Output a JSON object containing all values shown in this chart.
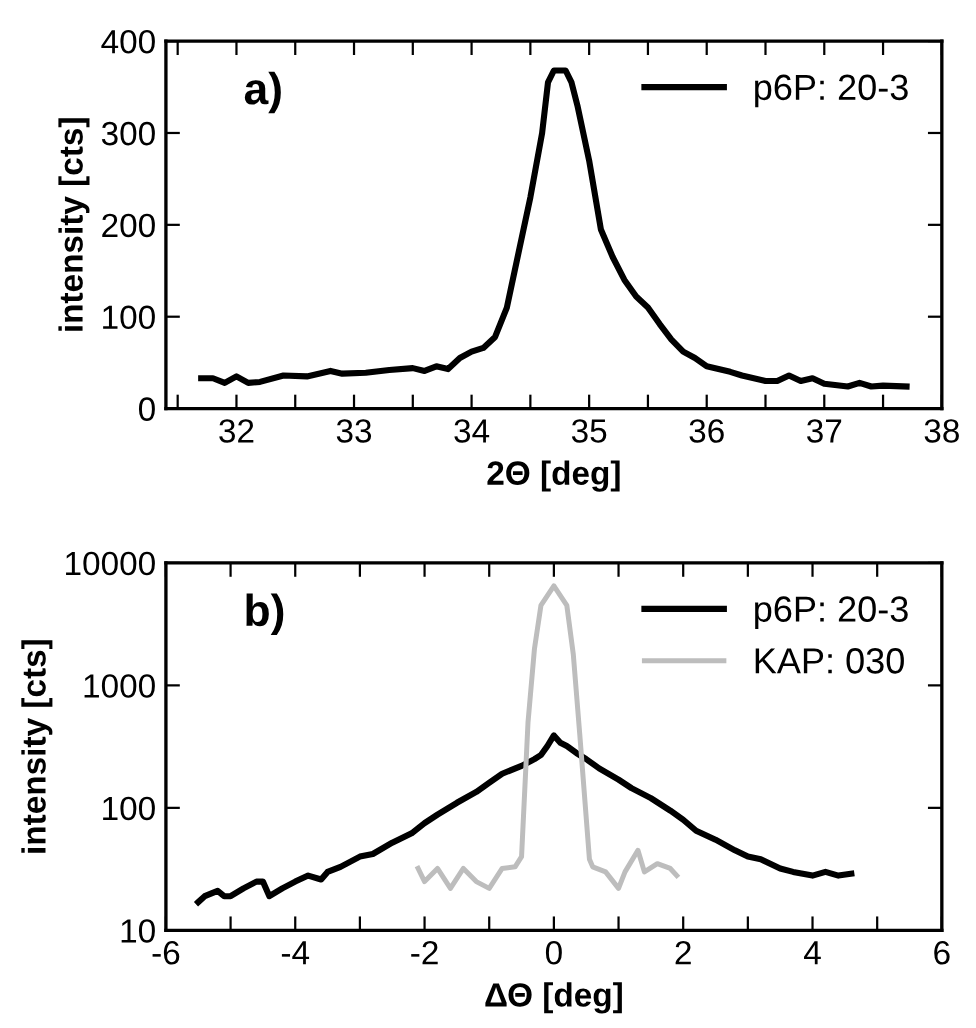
{
  "chart_data": [
    {
      "type": "line",
      "xlabel": "2Θ [deg]",
      "ylabel": "intensity [cts]",
      "annotations": [
        "a)"
      ],
      "legend": "top right",
      "grid": false,
      "marker": "none",
      "line_style": "solid",
      "xlim": [
        31.4,
        38
      ],
      "ylim": [
        0,
        400
      ],
      "xticks": [
        {
          "value": 31.5,
          "label": null
        },
        32,
        {
          "value": 32.5,
          "label": null
        },
        33,
        {
          "value": 33.5,
          "label": null
        },
        34,
        {
          "value": 34.5,
          "label": null
        },
        35,
        {
          "value": 35.5,
          "label": null
        },
        36,
        {
          "value": 36.5,
          "label": null
        },
        37,
        {
          "value": 37.5,
          "label": null
        },
        38
      ],
      "yticks": [
        0,
        100,
        200,
        300,
        400
      ],
      "series": [
        {
          "name": "p6P: 20-3",
          "color": "#000000",
          "x": [
            31.7,
            31.8,
            31.9,
            32.0,
            32.1,
            32.2,
            32.4,
            32.6,
            32.8,
            32.9,
            33.1,
            33.3,
            33.5,
            33.6,
            33.7,
            33.8,
            33.9,
            34.0,
            34.1,
            34.2,
            34.3,
            34.4,
            34.5,
            34.6,
            34.65,
            34.7,
            34.8,
            34.85,
            34.9,
            35.0,
            35.1,
            35.2,
            35.3,
            35.4,
            35.5,
            35.6,
            35.7,
            35.8,
            35.9,
            36.0,
            36.2,
            36.3,
            36.5,
            36.6,
            36.7,
            36.8,
            36.9,
            37.0,
            37.2,
            37.3,
            37.4,
            37.5,
            37.7
          ],
          "values": [
            33,
            33,
            28,
            35,
            28,
            29,
            36,
            35,
            41,
            38,
            39,
            42,
            44,
            41,
            46,
            43,
            55,
            62,
            66,
            78,
            110,
            170,
            230,
            300,
            355,
            368,
            368,
            355,
            330,
            270,
            195,
            165,
            140,
            122,
            110,
            92,
            75,
            62,
            55,
            46,
            40,
            36,
            30,
            30,
            36,
            30,
            33,
            27,
            24,
            28,
            24,
            25,
            24
          ]
        }
      ]
    },
    {
      "type": "line",
      "xlabel": "ΔΘ [deg]",
      "ylabel": "intensity [cts]",
      "annotations": [
        "b)"
      ],
      "legend": "top right",
      "grid": false,
      "marker": "none",
      "line_style": "solid",
      "log": "y",
      "xlim": [
        -6,
        6
      ],
      "ylim": [
        10,
        10000
      ],
      "xticks": [
        -6,
        {
          "value": -5,
          "label": null
        },
        -4,
        {
          "value": -3,
          "label": null
        },
        -2,
        {
          "value": -1,
          "label": null
        },
        0,
        {
          "value": 1,
          "label": null
        },
        2,
        {
          "value": 3,
          "label": null
        },
        4,
        {
          "value": 5,
          "label": null
        },
        6
      ],
      "yticks": [
        10,
        100,
        1000,
        10000
      ],
      "series": [
        {
          "name": "p6P: 20-3",
          "color": "#000000",
          "x": [
            -5.5,
            -5.4,
            -5.2,
            -5.1,
            -5.0,
            -4.8,
            -4.6,
            -4.5,
            -4.4,
            -4.2,
            -4.0,
            -3.8,
            -3.6,
            -3.5,
            -3.3,
            -3.0,
            -2.8,
            -2.5,
            -2.2,
            -2.0,
            -1.8,
            -1.5,
            -1.2,
            -1.0,
            -0.8,
            -0.5,
            -0.3,
            -0.2,
            -0.1,
            0.0,
            0.1,
            0.2,
            0.35,
            0.5,
            0.7,
            1.0,
            1.2,
            1.5,
            1.8,
            2.0,
            2.2,
            2.5,
            2.8,
            3.0,
            3.2,
            3.5,
            3.7,
            4.0,
            4.2,
            4.4,
            4.6
          ],
          "values": [
            17,
            19,
            21,
            19,
            19,
            22,
            25,
            25,
            19,
            22,
            25,
            28,
            26,
            30,
            33,
            40,
            42,
            52,
            62,
            75,
            88,
            110,
            135,
            160,
            190,
            220,
            250,
            270,
            320,
            390,
            340,
            320,
            280,
            250,
            210,
            170,
            145,
            120,
            95,
            80,
            65,
            55,
            45,
            40,
            38,
            32,
            30,
            28,
            30,
            28,
            29
          ]
        },
        {
          "name": "KAP: 030",
          "color": "#bdbdbd",
          "x": [
            -2.1,
            -2.0,
            -1.8,
            -1.6,
            -1.4,
            -1.2,
            -1.0,
            -0.8,
            -0.6,
            -0.5,
            -0.4,
            -0.3,
            -0.2,
            0.0,
            0.2,
            0.3,
            0.4,
            0.55,
            0.6,
            0.8,
            1.0,
            1.1,
            1.3,
            1.4,
            1.6,
            1.8,
            1.9
          ],
          "values": [
            32,
            25,
            32,
            22,
            32,
            25,
            22,
            32,
            33,
            40,
            500,
            2000,
            4500,
            6500,
            4500,
            1800,
            400,
            38,
            33,
            30,
            22,
            30,
            45,
            30,
            35,
            32,
            28
          ]
        }
      ]
    }
  ]
}
